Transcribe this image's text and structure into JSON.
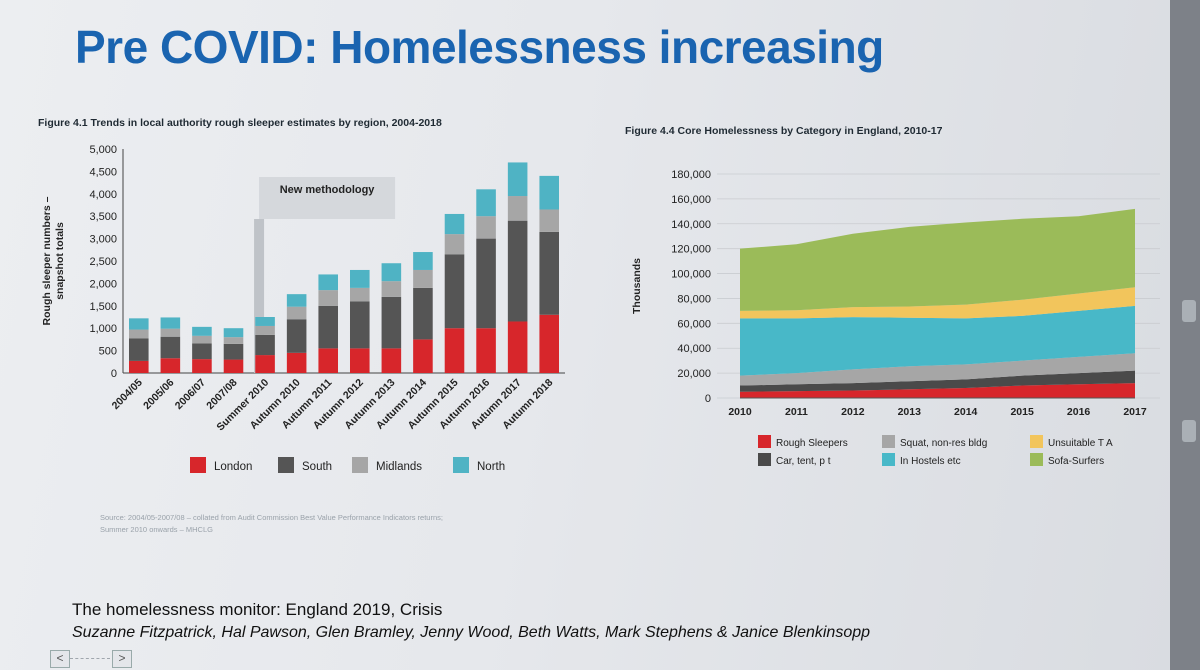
{
  "slide": {
    "title": "Pre COVID: Homelessness increasing",
    "monitor_line1": "The homelessness monitor: England 2019, Crisis",
    "monitor_line2": "Suzanne Fitzpatrick, Hal Pawson, Glen Bramley, Jenny Wood, Beth Watts, Mark Stephens & Janice Blenkinsopp",
    "nav_prev": "<",
    "nav_next": ">"
  },
  "chart_data": [
    {
      "type": "bar",
      "stacked": true,
      "title": "Figure 4.1 Trends in local authority rough sleeper estimates by region, 2004-2018",
      "ylabel_line1": "Rough sleeper numbers –",
      "ylabel_line2": "snapshot totals",
      "ylim": [
        0,
        5000
      ],
      "yticks": [
        "0",
        "500",
        "1,000",
        "1,500",
        "2,000",
        "2,500",
        "3,000",
        "3,500",
        "4,000",
        "4,500",
        "5,000"
      ],
      "categories": [
        "2004/05",
        "2005/06",
        "2006/07",
        "2007/08",
        "Summer 2010",
        "Autumn 2010",
        "Autumn 2011",
        "Autumn 2012",
        "Autumn 2013",
        "Autumn 2014",
        "Autumn 2015",
        "Autumn 2016",
        "Autumn 2017",
        "Autumn 2018"
      ],
      "annotation": "New methodology",
      "series": [
        {
          "name": "London",
          "color": "#d7262b",
          "values": [
            270,
            330,
            310,
            300,
            400,
            450,
            550,
            550,
            550,
            750,
            1000,
            1000,
            1150,
            1300
          ]
        },
        {
          "name": "South",
          "color": "#555555",
          "values": [
            500,
            480,
            350,
            350,
            450,
            750,
            950,
            1050,
            1150,
            1150,
            1650,
            2000,
            2250,
            1850
          ]
        },
        {
          "name": "Midlands",
          "color": "#a6a6a6",
          "values": [
            200,
            180,
            170,
            150,
            200,
            280,
            350,
            300,
            350,
            400,
            450,
            500,
            550,
            500
          ]
        },
        {
          "name": "North",
          "color": "#4fb3c4",
          "values": [
            250,
            250,
            200,
            200,
            200,
            280,
            350,
            400,
            400,
            400,
            450,
            600,
            750,
            750
          ]
        }
      ],
      "source_line1": "Source: 2004/05-2007/08 – collated from Audit Commission Best Value Performance Indicators returns;",
      "source_line2": "Summer 2010 onwards – MHCLG"
    },
    {
      "type": "area",
      "stacked": true,
      "title": "Figure 4.4 Core Homelessness by Category in England, 2010-17",
      "ylabel": "Thousands",
      "ylim": [
        0,
        180000
      ],
      "yticks": [
        "0",
        "20,000",
        "40,000",
        "60,000",
        "80,000",
        "100,000",
        "120,000",
        "140,000",
        "160,000",
        "180,000"
      ],
      "x": [
        "2010",
        "2011",
        "2012",
        "2013",
        "2014",
        "2015",
        "2016",
        "2017"
      ],
      "series": [
        {
          "name": "Rough Sleepers",
          "color": "#d7262b",
          "values": [
            5000,
            5500,
            6000,
            7000,
            8000,
            10000,
            11000,
            12000
          ]
        },
        {
          "name": "Car, tent, p t",
          "color": "#4a4a4a",
          "values": [
            5000,
            5500,
            6000,
            6500,
            7000,
            8000,
            9000,
            10000
          ]
        },
        {
          "name": "Squat, non-res bldg",
          "color": "#a6a6a6",
          "values": [
            8000,
            9000,
            11000,
            12000,
            12000,
            12000,
            13000,
            14000
          ]
        },
        {
          "name": "In Hostels etc",
          "color": "#48b8c8",
          "values": [
            46000,
            44000,
            42000,
            39000,
            37000,
            36000,
            37000,
            38000
          ]
        },
        {
          "name": "Unsuitable T A",
          "color": "#f2c55c",
          "values": [
            6000,
            6500,
            8000,
            9000,
            11000,
            13000,
            14000,
            15000
          ]
        },
        {
          "name": "Sofa-Surfers",
          "color": "#9bbb59",
          "values": [
            50000,
            53000,
            59000,
            64000,
            66000,
            65000,
            62000,
            63000
          ]
        }
      ]
    }
  ]
}
